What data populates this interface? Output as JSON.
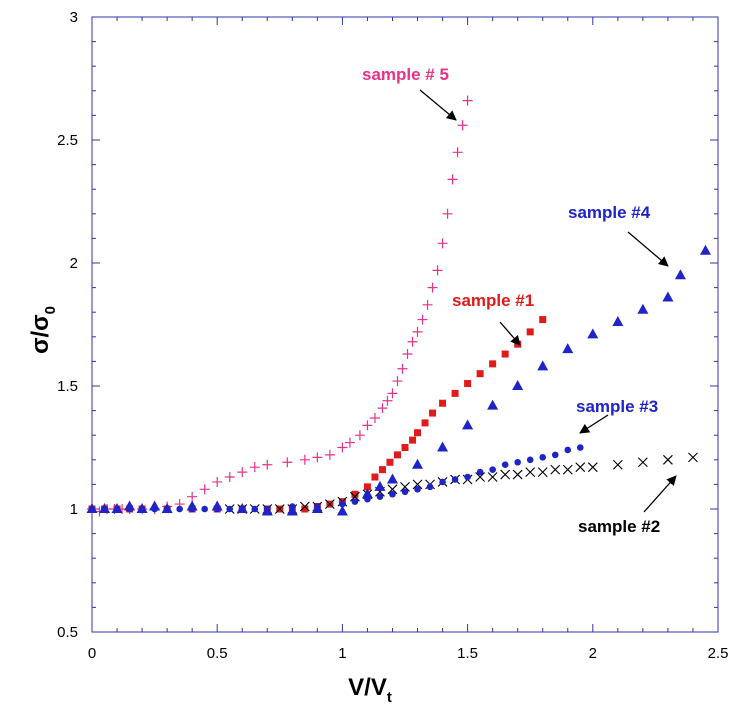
{
  "chart_data": {
    "type": "scatter",
    "title": "",
    "xlabel": {
      "main": "V/V",
      "sub": "t"
    },
    "ylabel": {
      "main": "σ/σ",
      "sub": "0"
    },
    "xlim": [
      0,
      2.5
    ],
    "ylim": [
      0.5,
      3
    ],
    "x_ticks": [
      0,
      0.5,
      1,
      1.5,
      2,
      2.5
    ],
    "x_tick_labels": [
      "0",
      "0.5",
      "1",
      "1.5",
      "2",
      "2.5"
    ],
    "y_ticks": [
      0.5,
      1,
      1.5,
      2,
      2.5,
      3
    ],
    "y_tick_labels": [
      "0.5",
      "1",
      "1.5",
      "2",
      "2.5",
      "3"
    ],
    "grid": false,
    "legend": "none",
    "series": [
      {
        "marker": "plus",
        "color": "#e6338a",
        "x": [
          0.0,
          0.03,
          0.06,
          0.09,
          0.12,
          0.15,
          0.2,
          0.25,
          0.3,
          0.35,
          0.4,
          0.45,
          0.5,
          0.55,
          0.6,
          0.65,
          0.7,
          0.78,
          0.85,
          0.9,
          0.95,
          1.0,
          1.03,
          1.07,
          1.1,
          1.13,
          1.16,
          1.18,
          1.2,
          1.22,
          1.24,
          1.26,
          1.28,
          1.3,
          1.32,
          1.34,
          1.36,
          1.38,
          1.4,
          1.42,
          1.44,
          1.46,
          1.48,
          1.5
        ],
        "y": [
          1.0,
          0.99,
          1.0,
          1.0,
          1.0,
          1.0,
          1.0,
          1.0,
          1.01,
          1.02,
          1.05,
          1.08,
          1.11,
          1.13,
          1.15,
          1.17,
          1.18,
          1.19,
          1.2,
          1.21,
          1.22,
          1.25,
          1.27,
          1.3,
          1.34,
          1.37,
          1.41,
          1.44,
          1.47,
          1.52,
          1.57,
          1.63,
          1.68,
          1.72,
          1.77,
          1.83,
          1.9,
          1.97,
          2.08,
          2.2,
          2.34,
          2.45,
          2.56,
          2.66
        ]
      },
      {
        "marker": "square",
        "color": "#e01b1b",
        "x": [
          0.0,
          0.05,
          0.1,
          0.15,
          0.2,
          0.3,
          0.4,
          0.5,
          0.6,
          0.7,
          0.75,
          0.8,
          0.85,
          0.9,
          0.95,
          1.0,
          1.05,
          1.1,
          1.13,
          1.16,
          1.19,
          1.22,
          1.25,
          1.28,
          1.3,
          1.33,
          1.36,
          1.4,
          1.45,
          1.5,
          1.55,
          1.6,
          1.65,
          1.7,
          1.75,
          1.8
        ],
        "y": [
          1.0,
          1.0,
          1.0,
          1.0,
          1.0,
          1.0,
          1.0,
          1.0,
          1.0,
          1.0,
          1.0,
          1.0,
          1.0,
          1.01,
          1.02,
          1.03,
          1.06,
          1.09,
          1.13,
          1.16,
          1.19,
          1.22,
          1.25,
          1.28,
          1.31,
          1.35,
          1.39,
          1.43,
          1.47,
          1.51,
          1.55,
          1.59,
          1.63,
          1.67,
          1.72,
          1.77
        ]
      },
      {
        "marker": "x",
        "color": "#000000",
        "x": [
          0.55,
          0.6,
          0.65,
          0.7,
          0.75,
          0.8,
          0.85,
          0.9,
          0.95,
          1.0,
          1.05,
          1.1,
          1.15,
          1.2,
          1.25,
          1.3,
          1.35,
          1.4,
          1.45,
          1.5,
          1.55,
          1.6,
          1.65,
          1.7,
          1.75,
          1.8,
          1.85,
          1.9,
          1.95,
          2.0,
          2.1,
          2.2,
          2.3,
          2.4
        ],
        "y": [
          1.0,
          1.0,
          1.0,
          1.0,
          1.0,
          1.0,
          1.01,
          1.01,
          1.02,
          1.03,
          1.05,
          1.06,
          1.07,
          1.08,
          1.09,
          1.1,
          1.1,
          1.11,
          1.12,
          1.12,
          1.13,
          1.13,
          1.14,
          1.14,
          1.15,
          1.15,
          1.16,
          1.16,
          1.17,
          1.17,
          1.18,
          1.19,
          1.2,
          1.21
        ]
      },
      {
        "marker": "circle",
        "color": "#1f24c8",
        "x": [
          0.0,
          0.05,
          0.1,
          0.15,
          0.2,
          0.25,
          0.3,
          0.35,
          0.4,
          0.45,
          0.5,
          0.55,
          0.6,
          0.65,
          0.7,
          0.8,
          0.9,
          1.0,
          1.05,
          1.1,
          1.15,
          1.2,
          1.25,
          1.3,
          1.35,
          1.4,
          1.45,
          1.5,
          1.55,
          1.6,
          1.65,
          1.7,
          1.75,
          1.8,
          1.85,
          1.9,
          1.95
        ],
        "y": [
          1.0,
          1.0,
          1.0,
          1.0,
          1.0,
          1.0,
          1.0,
          1.0,
          1.0,
          1.0,
          1.0,
          1.0,
          1.0,
          1.0,
          1.0,
          1.01,
          1.01,
          1.02,
          1.03,
          1.04,
          1.05,
          1.06,
          1.07,
          1.08,
          1.09,
          1.11,
          1.12,
          1.13,
          1.15,
          1.16,
          1.18,
          1.19,
          1.2,
          1.21,
          1.22,
          1.24,
          1.25
        ]
      },
      {
        "marker": "triangle",
        "color": "#1f24c8",
        "x": [
          0.0,
          0.05,
          0.1,
          0.15,
          0.2,
          0.25,
          0.3,
          0.4,
          0.5,
          0.6,
          0.7,
          0.8,
          0.9,
          1.0,
          1.1,
          1.15,
          1.2,
          1.3,
          1.4,
          1.5,
          1.6,
          1.7,
          1.8,
          1.9,
          2.0,
          2.1,
          2.2,
          2.3,
          2.35,
          2.45
        ],
        "y": [
          1.0,
          1.0,
          1.0,
          1.01,
          1.0,
          1.01,
          1.0,
          1.01,
          1.01,
          1.0,
          0.99,
          0.99,
          1.0,
          0.99,
          1.06,
          1.09,
          1.12,
          1.18,
          1.25,
          1.34,
          1.42,
          1.5,
          1.58,
          1.65,
          1.71,
          1.76,
          1.81,
          1.86,
          1.95,
          2.05
        ]
      }
    ],
    "annotations": [
      {
        "text": "sample # 5",
        "color": "#e6338a"
      },
      {
        "text": "sample #1",
        "color": "#e01b1b"
      },
      {
        "text": "sample #4",
        "color": "#1f24c8"
      },
      {
        "text": "sample #3",
        "color": "#1f24c8"
      },
      {
        "text": "sample #2",
        "color": "#000000"
      }
    ],
    "frame_color": "#3333aa"
  }
}
